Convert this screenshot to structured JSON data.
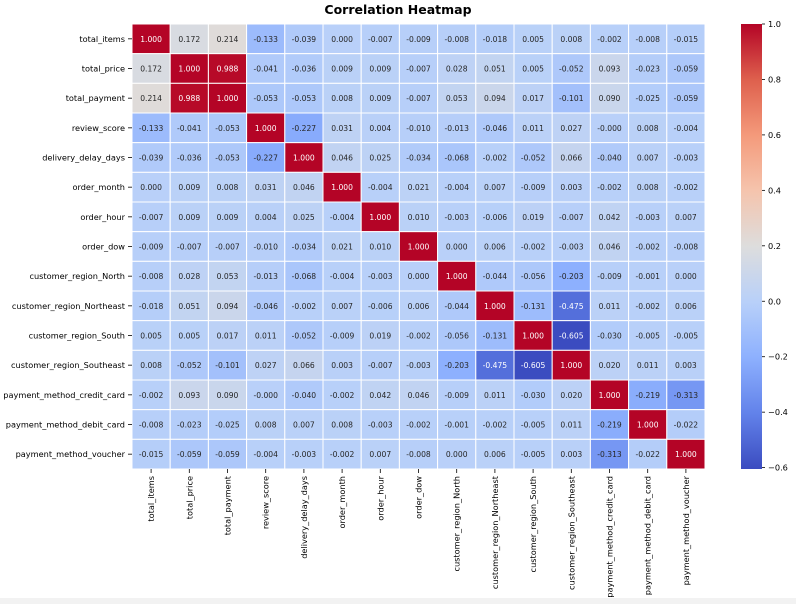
{
  "chart_data": {
    "type": "heatmap",
    "title": "Correlation Heatmap",
    "xlabel": "",
    "ylabel": "",
    "labels": [
      "total_items",
      "total_price",
      "total_payment",
      "review_score",
      "delivery_delay_days",
      "order_month",
      "order_hour",
      "order_dow",
      "customer_region_North",
      "customer_region_Northeast",
      "customer_region_South",
      "customer_region_Southeast",
      "payment_method_credit_card",
      "payment_method_debit_card",
      "payment_method_voucher"
    ],
    "matrix": [
      [
        1.0,
        0.172,
        0.214,
        -0.133,
        -0.039,
        0.0,
        -0.007,
        -0.009,
        -0.008,
        -0.018,
        0.005,
        0.008,
        -0.002,
        -0.008,
        -0.015
      ],
      [
        0.172,
        1.0,
        0.988,
        -0.041,
        -0.036,
        0.009,
        0.009,
        -0.007,
        0.028,
        0.051,
        0.005,
        -0.052,
        0.093,
        -0.023,
        -0.059
      ],
      [
        0.214,
        0.988,
        1.0,
        -0.053,
        -0.053,
        0.008,
        0.009,
        -0.007,
        0.053,
        0.094,
        0.017,
        -0.101,
        0.09,
        -0.025,
        -0.059
      ],
      [
        -0.133,
        -0.041,
        -0.053,
        1.0,
        -0.227,
        0.031,
        0.004,
        -0.01,
        -0.013,
        -0.046,
        0.011,
        0.027,
        -0.0,
        0.008,
        -0.004
      ],
      [
        -0.039,
        -0.036,
        -0.053,
        -0.227,
        1.0,
        0.046,
        0.025,
        -0.034,
        -0.068,
        -0.002,
        -0.052,
        0.066,
        -0.04,
        0.007,
        -0.003
      ],
      [
        0.0,
        0.009,
        0.008,
        0.031,
        0.046,
        1.0,
        -0.004,
        0.021,
        -0.004,
        0.007,
        -0.009,
        0.003,
        -0.002,
        0.008,
        -0.002
      ],
      [
        -0.007,
        0.009,
        0.009,
        0.004,
        0.025,
        -0.004,
        1.0,
        0.01,
        -0.003,
        -0.006,
        0.019,
        -0.007,
        0.042,
        -0.003,
        0.007
      ],
      [
        -0.009,
        -0.007,
        -0.007,
        -0.01,
        -0.034,
        0.021,
        0.01,
        1.0,
        0.0,
        0.006,
        -0.002,
        -0.003,
        0.046,
        -0.002,
        -0.008
      ],
      [
        -0.008,
        0.028,
        0.053,
        -0.013,
        -0.068,
        -0.004,
        -0.003,
        0.0,
        1.0,
        -0.044,
        -0.056,
        -0.203,
        -0.009,
        -0.001,
        0.0
      ],
      [
        -0.018,
        0.051,
        0.094,
        -0.046,
        -0.002,
        0.007,
        -0.006,
        0.006,
        -0.044,
        1.0,
        -0.131,
        -0.475,
        0.011,
        -0.002,
        0.006
      ],
      [
        0.005,
        0.005,
        0.017,
        0.011,
        -0.052,
        -0.009,
        0.019,
        -0.002,
        -0.056,
        -0.131,
        1.0,
        -0.605,
        -0.03,
        -0.005,
        -0.005
      ],
      [
        0.008,
        -0.052,
        -0.101,
        0.027,
        0.066,
        0.003,
        -0.007,
        -0.003,
        -0.203,
        -0.475,
        -0.605,
        1.0,
        0.02,
        0.011,
        0.003
      ],
      [
        -0.002,
        0.093,
        0.09,
        -0.0,
        -0.04,
        -0.002,
        0.042,
        0.046,
        -0.009,
        0.011,
        -0.03,
        0.02,
        1.0,
        -0.219,
        -0.313
      ],
      [
        -0.008,
        -0.023,
        -0.025,
        0.008,
        0.007,
        0.008,
        -0.003,
        -0.002,
        -0.001,
        -0.002,
        -0.005,
        0.011,
        -0.219,
        1.0,
        -0.022
      ],
      [
        -0.015,
        -0.059,
        -0.059,
        -0.004,
        -0.003,
        -0.002,
        0.007,
        -0.008,
        0.0,
        0.006,
        -0.005,
        0.003,
        -0.313,
        -0.022,
        1.0
      ]
    ],
    "value_format": "0.000",
    "colormap": "coolwarm",
    "vmin": -0.605,
    "vmax": 1.0,
    "colorbar": {
      "ticks": [
        1.0,
        0.8,
        0.6,
        0.4,
        0.2,
        0.0,
        -0.2,
        -0.4,
        -0.6
      ],
      "tick_labels": [
        "1.0",
        "0.8",
        "0.6",
        "0.4",
        "0.2",
        "0.0",
        "−0.2",
        "−0.4",
        "−0.6"
      ],
      "placement": "right"
    },
    "grid": false,
    "cell_border_color": "#ffffff",
    "colors": {
      "low": "#3b4cc0",
      "mid": "#dddddd",
      "high": "#b40426"
    }
  }
}
